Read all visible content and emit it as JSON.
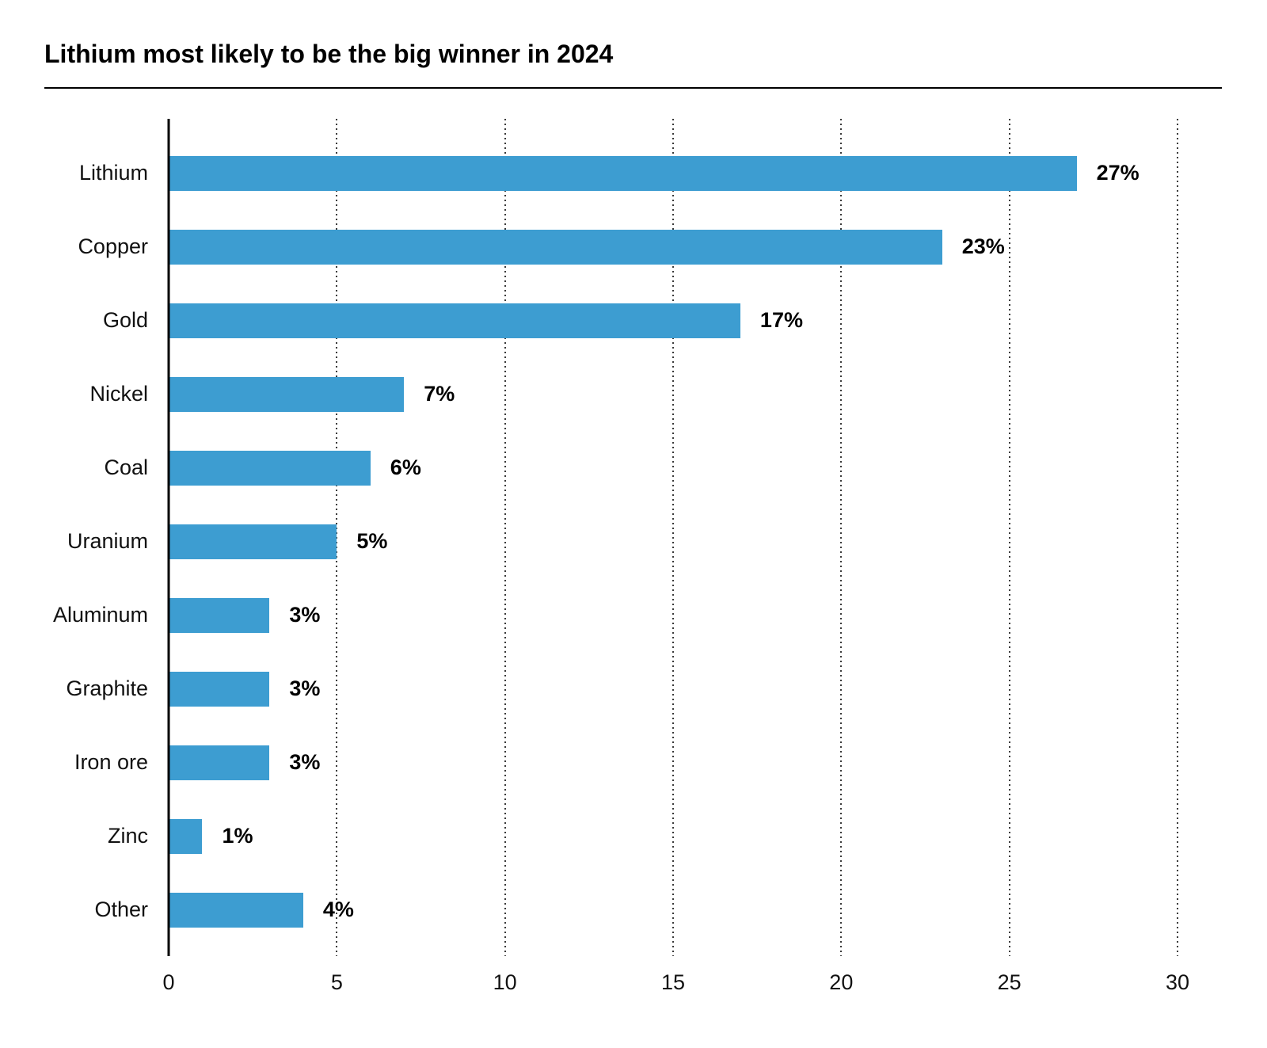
{
  "page": {
    "title": "Lithium most likely to be the big winner in 2024"
  },
  "chart_data": {
    "type": "bar",
    "orientation": "horizontal",
    "title": "Lithium most likely to be the big winner in 2024",
    "categories": [
      "Lithium",
      "Copper",
      "Gold",
      "Nickel",
      "Coal",
      "Uranium",
      "Aluminum",
      "Graphite",
      "Iron ore",
      "Zinc",
      "Other"
    ],
    "values": [
      27,
      23,
      17,
      7,
      6,
      5,
      3,
      3,
      3,
      1,
      4
    ],
    "value_labels": [
      "27%",
      "23%",
      "17%",
      "7%",
      "6%",
      "5%",
      "3%",
      "3%",
      "3%",
      "1%",
      "4%"
    ],
    "xlabel": "",
    "ylabel": "",
    "xlim": [
      0,
      30
    ],
    "xticks": [
      0,
      5,
      10,
      15,
      20,
      25,
      30
    ],
    "grid": "vertical-dotted",
    "legend": "none",
    "bar_color": "#3D9DD1",
    "axis_color": "#000000",
    "gridline_color": "#3a3a3a",
    "text_color": "#111111"
  }
}
